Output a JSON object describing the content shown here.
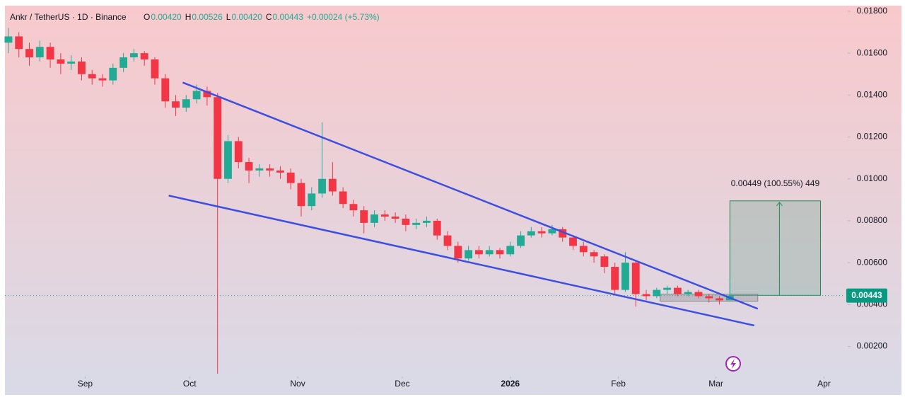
{
  "chart_data": {
    "type": "candlestick",
    "header": {
      "symbol": "Ankr / TetherUS · 1D · Binance",
      "ohlc": [
        {
          "label": "O",
          "value": "0.00420"
        },
        {
          "label": "H",
          "value": "0.00526"
        },
        {
          "label": "L",
          "value": "0.00420"
        },
        {
          "label": "C",
          "value": "0.00443"
        }
      ],
      "change": "+0.00024 (+5.73%)"
    },
    "x": [
      0,
      3,
      6,
      9,
      12,
      15,
      18,
      21,
      24,
      27,
      30,
      33,
      36,
      39,
      42,
      45,
      48,
      51,
      54,
      57,
      60,
      63,
      66,
      69,
      72,
      75,
      78,
      81,
      84,
      87,
      90,
      93,
      96,
      99,
      102,
      105,
      108,
      111,
      114,
      117,
      120,
      123,
      126,
      129,
      132,
      135,
      138,
      141,
      144,
      147,
      150,
      153,
      156,
      159,
      162,
      165,
      168,
      171,
      174,
      177,
      180,
      183,
      186,
      189,
      192,
      195,
      198,
      201,
      204,
      207
    ],
    "open": [
      0.0165,
      0.0168,
      0.0162,
      0.0158,
      0.0163,
      0.0157,
      0.0155,
      0.0156,
      0.015,
      0.0148,
      0.0147,
      0.0153,
      0.0158,
      0.016,
      0.0157,
      0.0148,
      0.0137,
      0.0134,
      0.0138,
      0.0142,
      0.0139,
      0.01,
      0.0118,
      0.0108,
      0.0104,
      0.0105,
      0.0104,
      0.0103,
      0.0098,
      0.0087,
      0.0093,
      0.01,
      0.0094,
      0.0088,
      0.0085,
      0.0079,
      0.0083,
      0.0082,
      0.0081,
      0.0078,
      0.0079,
      0.008,
      0.0073,
      0.0068,
      0.0062,
      0.0066,
      0.0064,
      0.0066,
      0.0064,
      0.0068,
      0.0073,
      0.0075,
      0.0074,
      0.0076,
      0.0072,
      0.0068,
      0.0065,
      0.0063,
      0.0058,
      0.0047,
      0.006,
      0.0045,
      0.0044,
      0.0047,
      0.0048,
      0.0045,
      0.0046,
      0.0044,
      0.0043,
      0.0042
    ],
    "high": [
      0.0172,
      0.017,
      0.0165,
      0.0166,
      0.0165,
      0.016,
      0.0159,
      0.0158,
      0.0152,
      0.015,
      0.0155,
      0.016,
      0.0162,
      0.0161,
      0.0158,
      0.015,
      0.014,
      0.014,
      0.0145,
      0.0144,
      0.0141,
      0.0121,
      0.012,
      0.011,
      0.0107,
      0.0107,
      0.0106,
      0.0105,
      0.01,
      0.0096,
      0.0127,
      0.0108,
      0.0096,
      0.009,
      0.0087,
      0.0085,
      0.0085,
      0.0084,
      0.0083,
      0.0081,
      0.0082,
      0.0081,
      0.0075,
      0.007,
      0.0068,
      0.0068,
      0.0068,
      0.0067,
      0.007,
      0.0075,
      0.0077,
      0.0077,
      0.0078,
      0.0077,
      0.0073,
      0.007,
      0.0066,
      0.0064,
      0.006,
      0.0065,
      0.0061,
      0.0047,
      0.0048,
      0.0049,
      0.0049,
      0.0047,
      0.0047,
      0.0045,
      0.0044,
      0.00526
    ],
    "low": [
      0.016,
      0.0158,
      0.0154,
      0.0156,
      0.0153,
      0.015,
      0.0152,
      0.0147,
      0.0145,
      0.0144,
      0.0145,
      0.0151,
      0.0156,
      0.0154,
      0.0145,
      0.0134,
      0.013,
      0.0132,
      0.0136,
      0.0135,
      0.0007,
      0.0098,
      0.0105,
      0.0098,
      0.0101,
      0.0101,
      0.01,
      0.0095,
      0.0082,
      0.0085,
      0.0091,
      0.0092,
      0.0086,
      0.0082,
      0.0074,
      0.0077,
      0.008,
      0.0079,
      0.0075,
      0.0076,
      0.0077,
      0.0071,
      0.0066,
      0.006,
      0.0061,
      0.0062,
      0.0063,
      0.0062,
      0.0063,
      0.0067,
      0.0072,
      0.0072,
      0.0073,
      0.007,
      0.0066,
      0.0063,
      0.006,
      0.0055,
      0.0045,
      0.0046,
      0.0039,
      0.0042,
      0.0043,
      0.0045,
      0.0044,
      0.0044,
      0.0043,
      0.0041,
      0.004,
      0.0042
    ],
    "close": [
      0.0168,
      0.0162,
      0.0158,
      0.0163,
      0.0157,
      0.0155,
      0.0156,
      0.015,
      0.0148,
      0.0147,
      0.0153,
      0.0158,
      0.016,
      0.0157,
      0.0148,
      0.0137,
      0.0134,
      0.0138,
      0.0142,
      0.0139,
      0.01,
      0.0118,
      0.0108,
      0.0104,
      0.0105,
      0.0104,
      0.0103,
      0.0098,
      0.0087,
      0.0093,
      0.01,
      0.0094,
      0.0088,
      0.0085,
      0.0079,
      0.0083,
      0.0082,
      0.0081,
      0.0078,
      0.0079,
      0.008,
      0.0073,
      0.0068,
      0.0062,
      0.0066,
      0.0064,
      0.0066,
      0.0064,
      0.0068,
      0.0073,
      0.0075,
      0.0074,
      0.0076,
      0.0072,
      0.0068,
      0.0065,
      0.0063,
      0.0058,
      0.0047,
      0.006,
      0.0045,
      0.0044,
      0.0047,
      0.0048,
      0.0045,
      0.0046,
      0.0044,
      0.0043,
      0.0042,
      0.00443
    ],
    "up_color": "#22ab94",
    "down_color": "#f23645",
    "xlim": [
      -1,
      240
    ],
    "xticks": [
      {
        "value": 22,
        "label": "Sep"
      },
      {
        "value": 52,
        "label": "Oct"
      },
      {
        "value": 83,
        "label": "Nov"
      },
      {
        "value": 113,
        "label": "Dec"
      },
      {
        "value": 144,
        "label": "2026"
      },
      {
        "value": 175,
        "label": "Feb"
      },
      {
        "value": 203,
        "label": "Mar"
      },
      {
        "value": 234,
        "label": "Apr"
      }
    ],
    "ylim": [
      0.0007,
      0.0182
    ],
    "yticks": [
      {
        "value": 0.018,
        "label": "0.01800"
      },
      {
        "value": 0.016,
        "label": "0.01600"
      },
      {
        "value": 0.014,
        "label": "0.01400"
      },
      {
        "value": 0.012,
        "label": "0.01200"
      },
      {
        "value": 0.01,
        "label": "0.01000"
      },
      {
        "value": 0.008,
        "label": "0.00800"
      },
      {
        "value": 0.006,
        "label": "0.00600"
      },
      {
        "value": 0.004,
        "label": "0.00400"
      },
      {
        "value": 0.002,
        "label": "0.00200"
      }
    ],
    "last_price": {
      "value": 0.00443,
      "label": "0.00443"
    },
    "trendlines": [
      {
        "x": [
          50,
          215
        ],
        "y": [
          0.0146,
          0.0038
        ]
      },
      {
        "x": [
          46,
          214
        ],
        "y": [
          0.0092,
          0.003
        ]
      }
    ],
    "trendline_color": "#3d4fe0",
    "range_box": {
      "x": [
        187,
        215
      ],
      "y": [
        0.00416,
        0.0045
      ]
    },
    "target_box": {
      "x": [
        207,
        233
      ],
      "y": [
        0.00444,
        0.00895
      ],
      "label": "0.00449 (100.55%) 449"
    }
  }
}
